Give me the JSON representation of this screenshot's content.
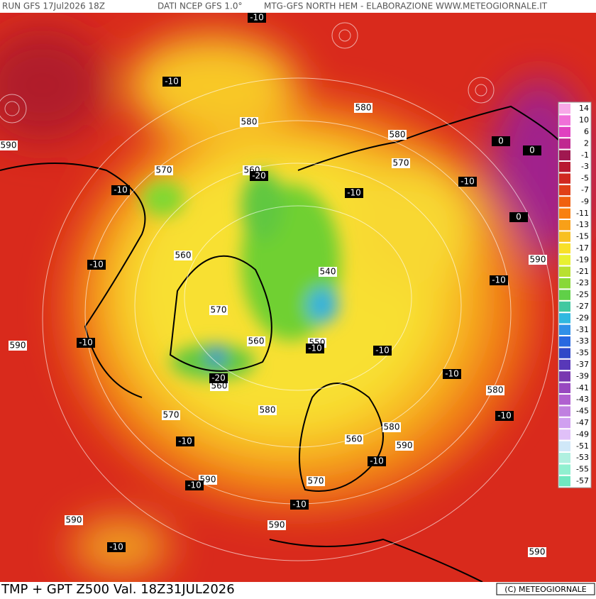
{
  "header": {
    "run": "RUN GFS 17Jul2026 18Z",
    "source": "DATI NCEP GFS 1.0°",
    "product": "MTG-GFS NORTH HEM - ELABORAZIONE WWW.METEOGIORNALE.IT"
  },
  "footer": {
    "title": "TMP + GPT Z500 Val. 18Z31JUL2026",
    "credit": "(C) METEOGIORNALE"
  },
  "legend": {
    "values": [
      14,
      10,
      6,
      2,
      -1,
      -3,
      -5,
      -7,
      -9,
      -11,
      -13,
      -15,
      -17,
      -19,
      -21,
      -23,
      -25,
      -27,
      -29,
      -31,
      -33,
      -35,
      -37,
      -39,
      -41,
      -43,
      -45,
      -47,
      -49,
      -51,
      -53,
      -55,
      -57
    ]
  },
  "geopotential_labels": [
    590,
    580,
    580,
    580,
    570,
    570,
    560,
    560,
    540,
    570,
    590,
    590,
    560,
    550,
    560,
    580,
    580,
    570,
    580,
    560,
    590,
    590,
    570,
    590,
    590,
    590
  ],
  "temperature_labels": [
    -10,
    -10,
    0,
    0,
    -20,
    -10,
    -10,
    -10,
    0,
    -10,
    -10,
    -10,
    -10,
    -10,
    -10,
    -20,
    -10,
    -10,
    -10,
    -10,
    -10,
    -10
  ]
}
